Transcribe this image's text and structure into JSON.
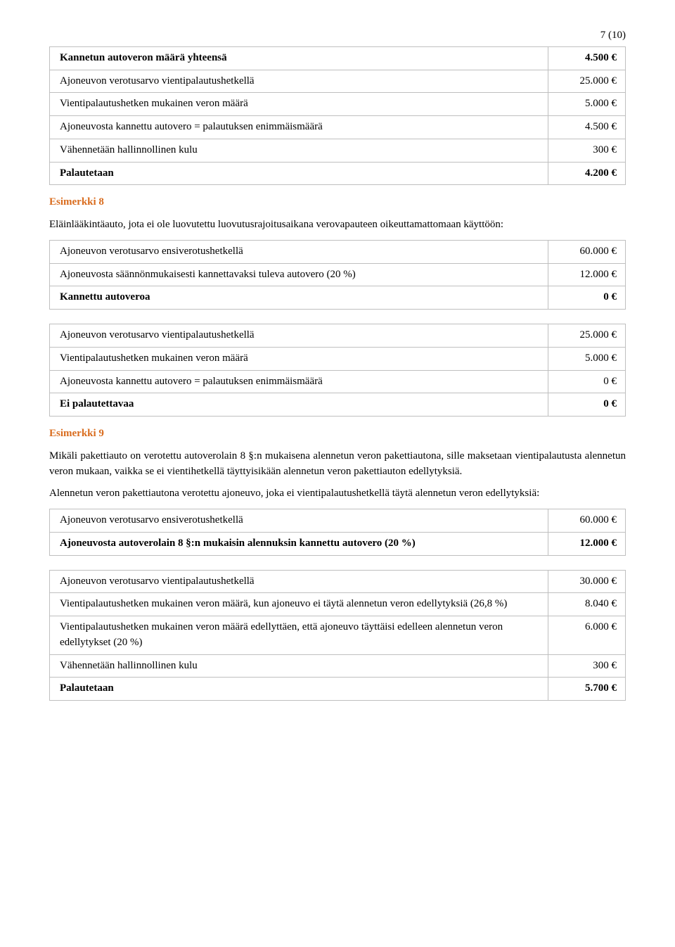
{
  "page_number": "7 (10)",
  "t1": {
    "rows": [
      {
        "label": "Kannetun autoveron määrä yhteensä",
        "val": "4.500 €",
        "bold": true
      },
      {
        "label": "Ajoneuvon verotusarvo vientipalautushetkellä",
        "val": "25.000 €"
      },
      {
        "label": "Vientipalautushetken mukainen veron määrä",
        "val": "5.000 €"
      },
      {
        "label": "Ajoneuvosta kannettu autovero = palautuksen enimmäismäärä",
        "val": "4.500 €"
      },
      {
        "label": "Vähennetään hallinnollinen kulu",
        "val": "300 €"
      },
      {
        "label": "Palautetaan",
        "val": "4.200 €",
        "bold": true
      }
    ]
  },
  "ex8": {
    "heading": "Esimerkki 8",
    "intro": "Eläinlääkintäauto, jota ei ole luovutettu luovutusrajoitusaikana verovapauteen oikeuttamattomaan käyttöön:"
  },
  "t2": {
    "rows": [
      {
        "label": "Ajoneuvon verotusarvo ensiverotushetkellä",
        "val": "60.000 €"
      },
      {
        "label": "Ajoneuvosta säännönmukaisesti kannettavaksi tuleva autovero (20 %)",
        "val": "12.000 €"
      },
      {
        "label": "Kannettu autoveroa",
        "val": "0 €",
        "bold": true
      }
    ]
  },
  "t3": {
    "rows": [
      {
        "label": "Ajoneuvon verotusarvo vientipalautushetkellä",
        "val": "25.000 €"
      },
      {
        "label": "Vientipalautushetken mukainen veron määrä",
        "val": "5.000 €"
      },
      {
        "label": "Ajoneuvosta kannettu autovero = palautuksen enimmäismäärä",
        "val": "0 €"
      },
      {
        "label": "Ei palautettavaa",
        "val": "0 €",
        "bold": true
      }
    ]
  },
  "ex9": {
    "heading": "Esimerkki 9",
    "p1": "Mikäli pakettiauto on verotettu autoverolain 8 §:n mukaisena alennetun veron pakettiautona, sille maksetaan vientipalautusta alennetun veron mukaan, vaikka se ei vientihetkellä täyttyisikään alennetun veron pakettiauton edellytyksiä.",
    "p2": "Alennetun veron pakettiautona verotettu ajoneuvo, joka ei vientipalautushetkellä täytä alennetun veron edellytyksiä:"
  },
  "t4": {
    "rows": [
      {
        "label": "Ajoneuvon verotusarvo ensiverotushetkellä",
        "val": "60.000 €"
      },
      {
        "label": "Ajoneuvosta autoverolain 8 §:n mukaisin alennuksin kannettu autovero (20 %)",
        "val": "12.000 €",
        "bold": true
      }
    ]
  },
  "t5": {
    "rows": [
      {
        "label": "Ajoneuvon verotusarvo vientipalautushetkellä",
        "val": "30.000 €"
      },
      {
        "label": "Vientipalautushetken mukainen veron määrä, kun ajoneuvo ei täytä alennetun veron edellytyksiä (26,8 %)",
        "val": "8.040 €"
      },
      {
        "label": "Vientipalautushetken mukainen veron määrä edellyttäen, että ajoneuvo täyttäisi edelleen alennetun veron edellytykset (20 %)",
        "val": "6.000 €"
      },
      {
        "label": "Vähennetään hallinnollinen kulu",
        "val": "300 €"
      },
      {
        "label": "Palautetaan",
        "val": "5.700 €",
        "bold": true
      }
    ]
  }
}
